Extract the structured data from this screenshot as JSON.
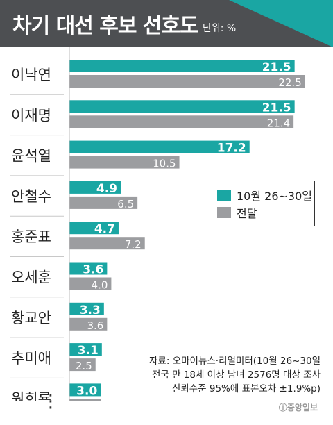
{
  "header": {
    "title": "차기 대선 후보 선호도",
    "unit": "단위: %"
  },
  "colors": {
    "current": "#1aa6a3",
    "previous": "#9c9da0",
    "header_bg": "#4d4f52",
    "divider": "#c8c8c8"
  },
  "legend": [
    {
      "label": "10월 26~30일",
      "series": "current"
    },
    {
      "label": "전달",
      "series": "previous"
    }
  ],
  "chart_data": {
    "type": "bar",
    "orientation": "horizontal",
    "xlim": [
      0,
      23
    ],
    "categories": [
      "이낙연",
      "이재명",
      "윤석열",
      "안철수",
      "홍준표",
      "오세훈",
      "황교안",
      "추미애",
      "원희룡"
    ],
    "series": [
      {
        "name": "10월 26~30일",
        "values": [
          21.5,
          21.5,
          17.2,
          4.9,
          4.7,
          3.6,
          3.3,
          3.1,
          3.0
        ]
      },
      {
        "name": "전달",
        "values": [
          22.5,
          21.4,
          10.5,
          6.5,
          7.2,
          4.0,
          3.6,
          2.5,
          3.0
        ]
      }
    ],
    "legend_position": "right",
    "grid": false
  },
  "note": {
    "lines": [
      "자료: 오마이뉴스·리얼미터(10월 26~30일",
      "전국 만 18세 이상 남녀 2576명 대상 조사",
      "신뢰수준 95%에 표본오차 ±1.9%p)"
    ],
    "brand": "ⓙ중앙일보"
  },
  "ellipsis": "⋮"
}
